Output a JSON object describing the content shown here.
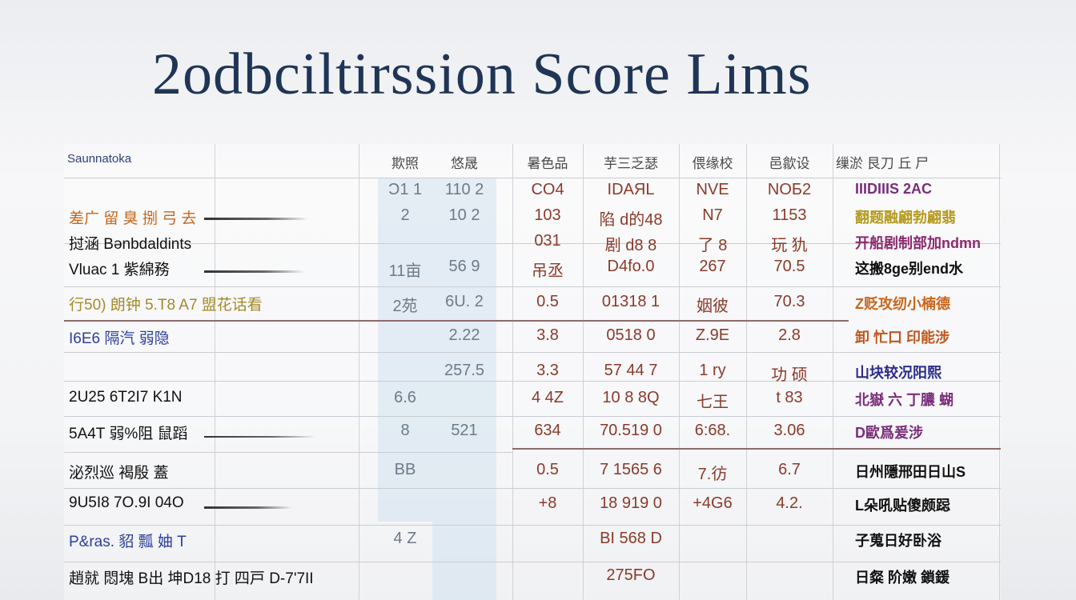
{
  "title": "2odbciltirssion Score Lims",
  "table": {
    "corner_label": "Saunnatoka",
    "columns": [
      "欺照",
      "悠晟",
      "暑色品",
      "芋三乏瑟",
      "偎缘校",
      "邑歙设",
      "缫淤 艮刀 丘 尸"
    ],
    "rows": [
      {
        "left": "",
        "left_color": "#666666",
        "c1": "Ɔ1 1",
        "c2": "110 2",
        "c3": "CO4",
        "c4": "IDAЯL",
        "c5": "NVE",
        "c6": "NOБ2",
        "right": "IIIDIIIS  2AC",
        "right_color": "#7a2e7a"
      },
      {
        "left": "差广 留 臭 捌 弓 去",
        "left_color": "#c8661c",
        "c1": "2",
        "c2": "10 2",
        "c3": "103",
        "c4": "陷 d的48",
        "c5": "N7",
        "c6": "1153",
        "right": "翻题融翩勃翩翡",
        "right_color": "#b59a1e"
      },
      {
        "left": "挝涵 Bənbdaldints",
        "left_color": "#111111",
        "c1": "",
        "c2": "",
        "c3": "031",
        "c4": "剧 d8 8",
        "c5": "了 8",
        "c6": "玩 犰",
        "right": "开船剧制部加ndmn",
        "right_color": "#8b2a6e"
      },
      {
        "left": "Vluac 1 紫綿務",
        "left_color": "#111111",
        "c1": "11亩",
        "c2": "56 9",
        "c3": "吊丞",
        "c4": "D4fo.0",
        "c5": "267",
        "c6": "70.5",
        "right": "这搬8ge别end水",
        "right_color": "#111111"
      },
      {
        "left": "行50)  朗钟  5.T8   A7 盟花话看",
        "left_color": "#a38a2a",
        "c1": "2苑",
        "c2": "6U. 2",
        "c3": "0.5",
        "c4": "01318 1",
        "c5": "姻彼",
        "c6": "70.3",
        "right": "Z贬攻纫小楠德",
        "right_color": "#c8661c"
      },
      {
        "left": "I6E6  隔汽  弱隐",
        "left_color": "#2c3f9a",
        "c1": "",
        "c2": "2.22",
        "c3": "3.8",
        "c4": "0518 0",
        "c5": "Z.9E",
        "c6": "2.8",
        "right": "卸 忙口  印能涉",
        "right_color": "#c0561c"
      },
      {
        "left": "",
        "left_color": "#666666",
        "c1": "",
        "c2": "257.5",
        "c3": "3.3",
        "c4": "57 44 7",
        "c5": "1 ry",
        "c6": "功 硕",
        "right": "山块较况阳熙",
        "right_color": "#2c2c8a"
      },
      {
        "left": "2U25 6T2I7 K1N",
        "left_color": "#111111",
        "c1": "6.6",
        "c2": "",
        "c3": "4 4Z",
        "c4": "10 8 8Q",
        "c5": "七王",
        "c6": "t 83",
        "right": "北嶽 六 丁膿 蝴",
        "right_color": "#7a2e7a"
      },
      {
        "left": "5A4T 弱%阻 鼠蹈",
        "left_color": "#111111",
        "c1": "8",
        "c2": "521",
        "c3": "634",
        "c4": "70.519 0",
        "c5": "6:68.",
        "c6": "3.06",
        "right": "D歐爲爰涉",
        "right_color": "#7a2e7a"
      },
      {
        "left": "泌烈巡 褐殷 蓋",
        "left_color": "#111111",
        "c1": "BB",
        "c2": "",
        "c3": "0.5",
        "c4": "7 1565 6",
        "c5": "7.彷",
        "c6": "6.7",
        "right": "日州隱邢田日山S",
        "right_color": "#111111"
      },
      {
        "left": "9U5I8 7O.9I 04O",
        "left_color": "#111111",
        "c1": "",
        "c2": "",
        "c3": "+8",
        "c4": "18 919 0",
        "c5": "+4G6",
        "c6": "4.2.",
        "right": "L朵吼贴傻颇跽",
        "right_color": "#111111"
      },
      {
        "left": "P&ras. 貂 瓢 妯 T",
        "left_color": "#2c3f9a",
        "c1": "4 Z",
        "c2": "",
        "c3": "",
        "c4": "BI 568 D",
        "c5": "",
        "c6": "",
        "right": "子蒐日好卧浴",
        "right_color": "#111111"
      },
      {
        "left": "趙就 悶塊 B出 坤D18 打 四戸  D-7'7II",
        "left_color": "#111111",
        "c1": "",
        "c2": "",
        "c3": "",
        "c4": "275FO",
        "c5": "",
        "c6": "",
        "right": "日粲 阶嫩 鎖鍰",
        "right_color": "#111111"
      }
    ]
  }
}
